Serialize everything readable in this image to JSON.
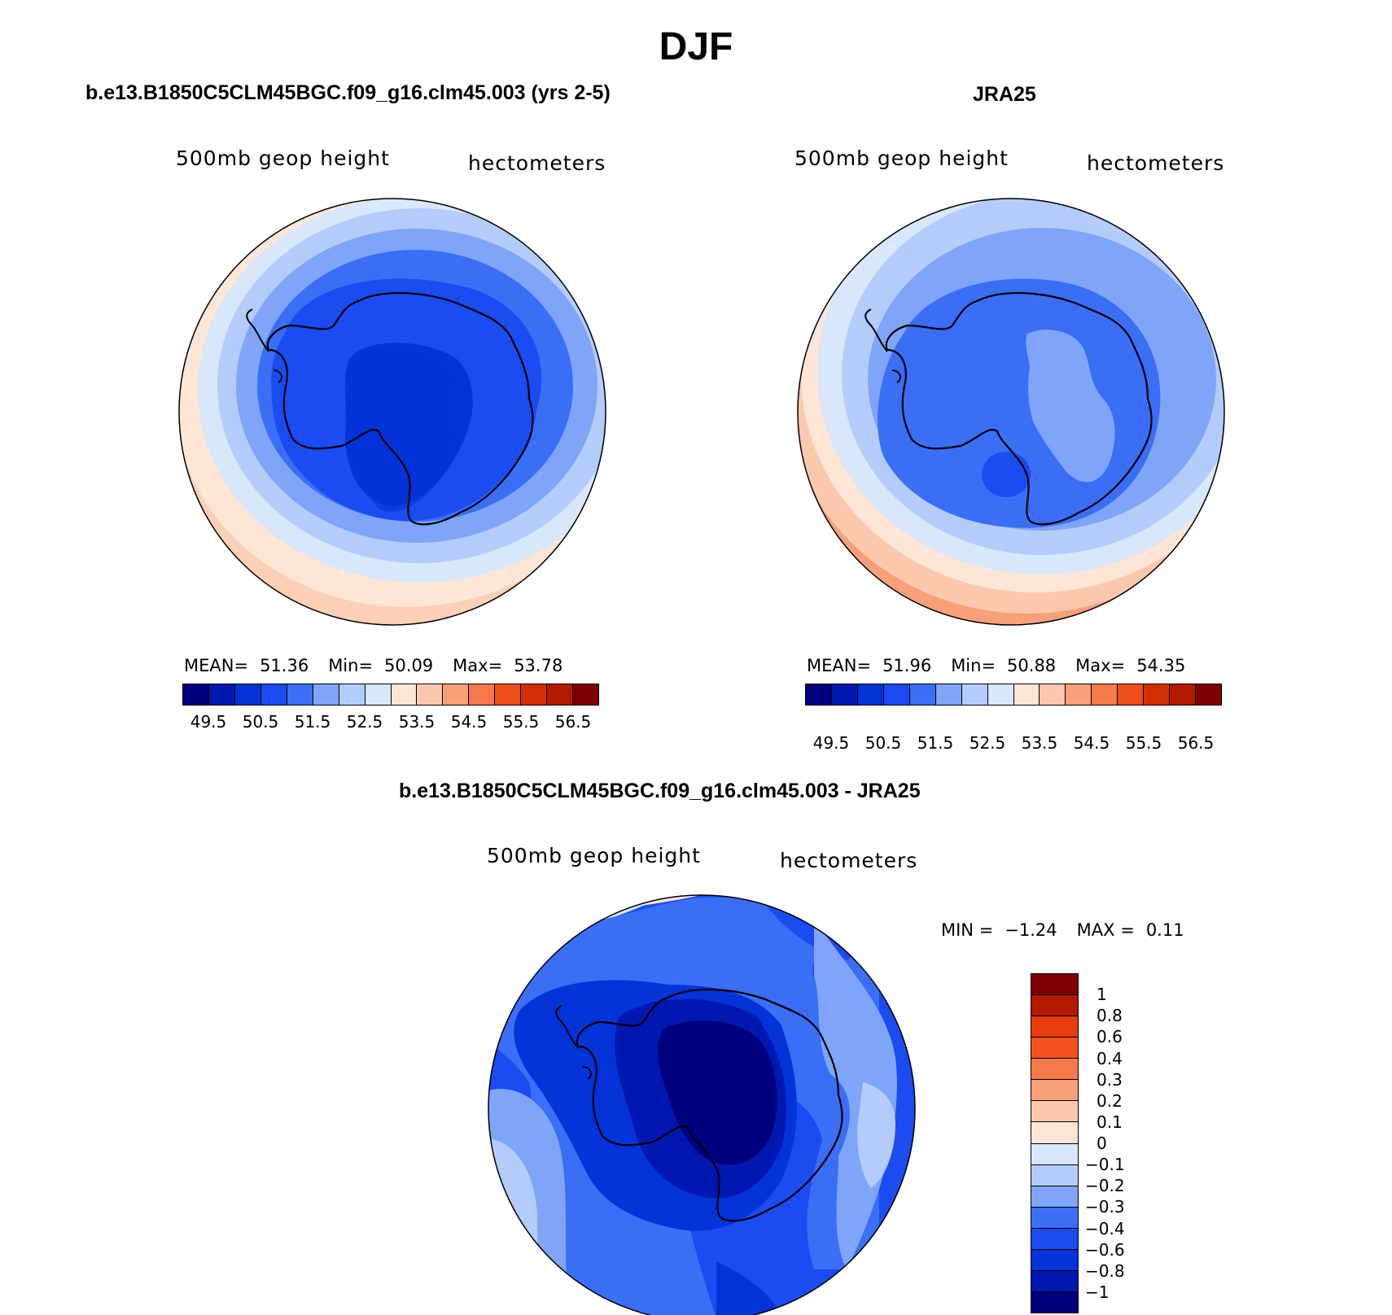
{
  "title": "DJF",
  "panels": {
    "model": {
      "title": "b.e13.B1850C5CLM45BGC.f09_g16.clm45.003 (yrs 2-5)",
      "left_label": "500mb geop height",
      "right_label": "hectometers",
      "mean_label": "MEAN=",
      "mean": "51.36",
      "min_label": "Min=",
      "min": "50.09",
      "max_label": "Max=",
      "max": "53.78"
    },
    "obs": {
      "title": "JRA25",
      "left_label": "500mb geop height",
      "right_label": "hectometers",
      "mean_label": "MEAN=",
      "mean": "51.96",
      "min_label": "Min=",
      "min": "50.88",
      "max_label": "Max=",
      "max": "54.35"
    },
    "diff": {
      "title": "b.e13.B1850C5CLM45BGC.f09_g16.clm45.003 - JRA25",
      "left_label": "500mb geop height",
      "right_label": "hectometers",
      "min_label": "MIN =",
      "min": "−1.24",
      "max_label": "MAX =",
      "max": "0.11"
    }
  },
  "colorbars": {
    "absolute": {
      "colors": [
        "#00007f",
        "#0018b0",
        "#0433d8",
        "#1a4cf2",
        "#3a6ef5",
        "#7ea5f8",
        "#b4ccfa",
        "#d8e7fa",
        "#fde6d6",
        "#fbc8ae",
        "#f8a07a",
        "#f6794a",
        "#ef4f1a",
        "#d32f05",
        "#b31a00",
        "#7f0000"
      ],
      "labels": [
        "49.5",
        "50.5",
        "51.5",
        "52.5",
        "53.5",
        "54.5",
        "55.5",
        "56.5"
      ]
    },
    "difference": {
      "colors": [
        "#7f0000",
        "#b31a00",
        "#e83b0e",
        "#f4511e",
        "#f6794a",
        "#f8a07a",
        "#fbc8ae",
        "#fde6d6",
        "#d8e7fa",
        "#b4ccfa",
        "#7ea5f8",
        "#3a6ef5",
        "#1a4cf2",
        "#0433d8",
        "#0018b0",
        "#00007f"
      ],
      "labels": [
        "1",
        "0.8",
        "0.6",
        "0.4",
        "0.3",
        "0.2",
        "0.1",
        "0",
        "−0.1",
        "−0.2",
        "−0.3",
        "−0.4",
        "−0.6",
        "−0.8",
        "−1"
      ]
    }
  }
}
